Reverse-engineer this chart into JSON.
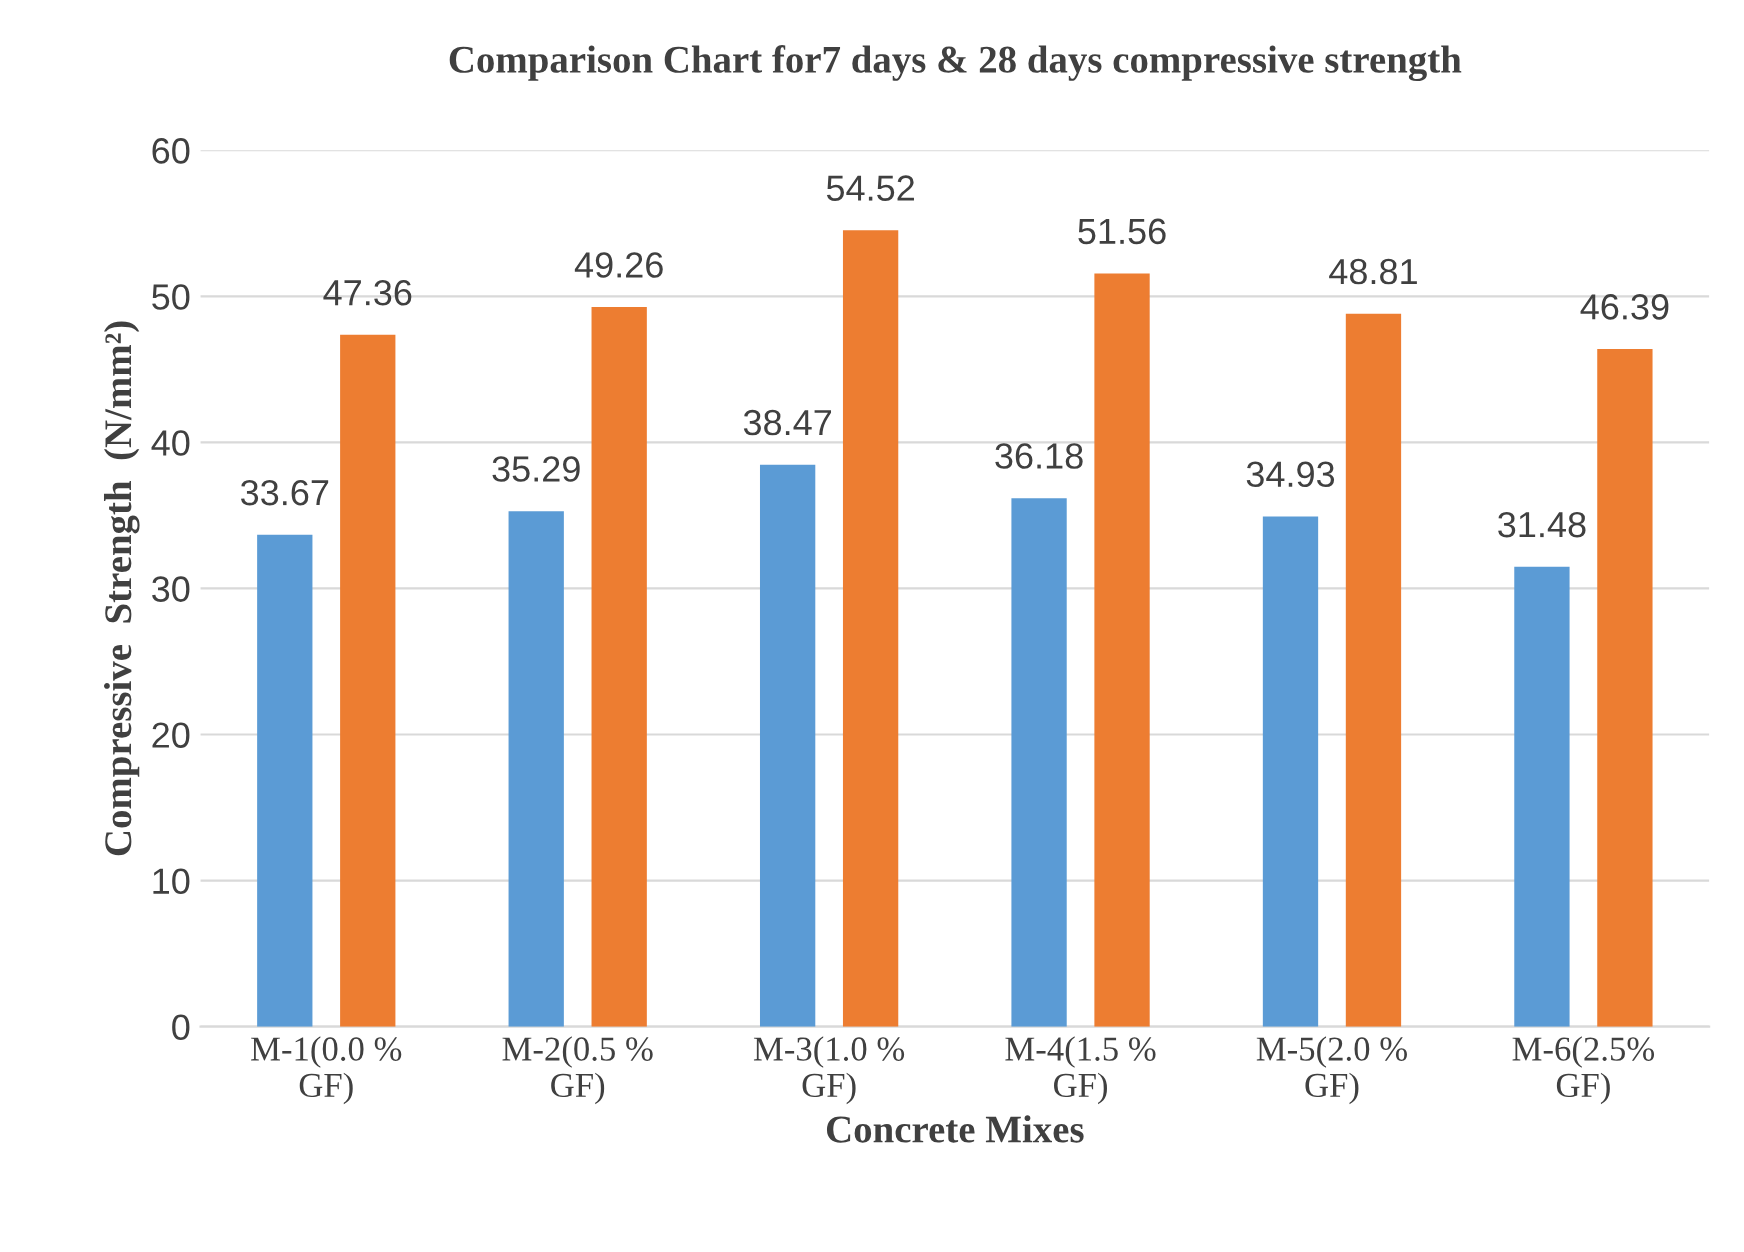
{
  "chart_data": {
    "type": "bar",
    "title": "Comparison Chart for7 days & 28 days compressive strength",
    "xlabel": "Concrete Mixes",
    "ylabel": "Compressive  Strength  (N/mm²)",
    "categories": [
      "M-1(0.0 %\nGF)",
      "M-2(0.5 %\nGF)",
      "M-3(1.0 %\nGF)",
      "M-4(1.5 %\nGF)",
      "M-5(2.0 %\nGF)",
      "M-6(2.5%\nGF)"
    ],
    "series": [
      {
        "color": "#5b9bd5",
        "values": [
          33.67,
          35.29,
          38.47,
          36.18,
          34.93,
          31.48
        ]
      },
      {
        "color": "#ed7d31",
        "values": [
          47.36,
          49.26,
          54.52,
          51.56,
          48.81,
          46.39
        ]
      }
    ],
    "ylim": [
      0,
      60
    ],
    "yticks": [
      0,
      10,
      20,
      30,
      40,
      50,
      60
    ],
    "grid": "y",
    "data_labels": true
  }
}
